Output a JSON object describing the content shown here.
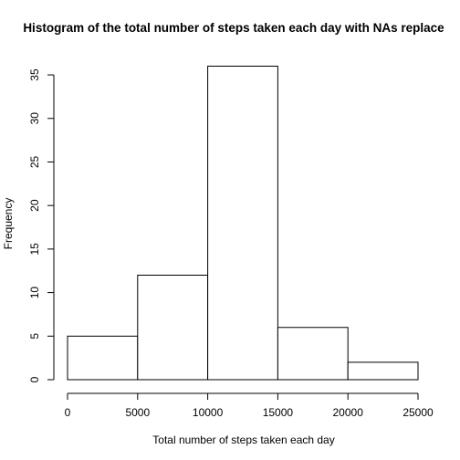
{
  "chart_data": {
    "type": "bar",
    "title": "Histogram of the total number of steps taken each day with NAs replace",
    "xlabel": "Total number of steps taken each day",
    "ylabel": "Frequency",
    "bins": [
      {
        "from": 0,
        "to": 5000,
        "count": 5
      },
      {
        "from": 5000,
        "to": 10000,
        "count": 12
      },
      {
        "from": 10000,
        "to": 15000,
        "count": 36
      },
      {
        "from": 15000,
        "to": 20000,
        "count": 6
      },
      {
        "from": 20000,
        "to": 25000,
        "count": 2
      }
    ],
    "xlim": [
      0,
      25000
    ],
    "ylim": [
      0,
      36
    ],
    "x_ticks": [
      0,
      5000,
      10000,
      15000,
      20000,
      25000
    ],
    "x_tick_labels": [
      "0",
      "5000",
      "10000",
      "15000",
      "20000",
      "25000"
    ],
    "y_ticks": [
      0,
      5,
      10,
      15,
      20,
      25,
      30,
      35
    ],
    "y_tick_labels": [
      "0",
      "5",
      "10",
      "15",
      "20",
      "25",
      "30",
      "35"
    ],
    "grid": false,
    "bar_fill": "#ffffff",
    "bar_stroke": "#000000"
  }
}
